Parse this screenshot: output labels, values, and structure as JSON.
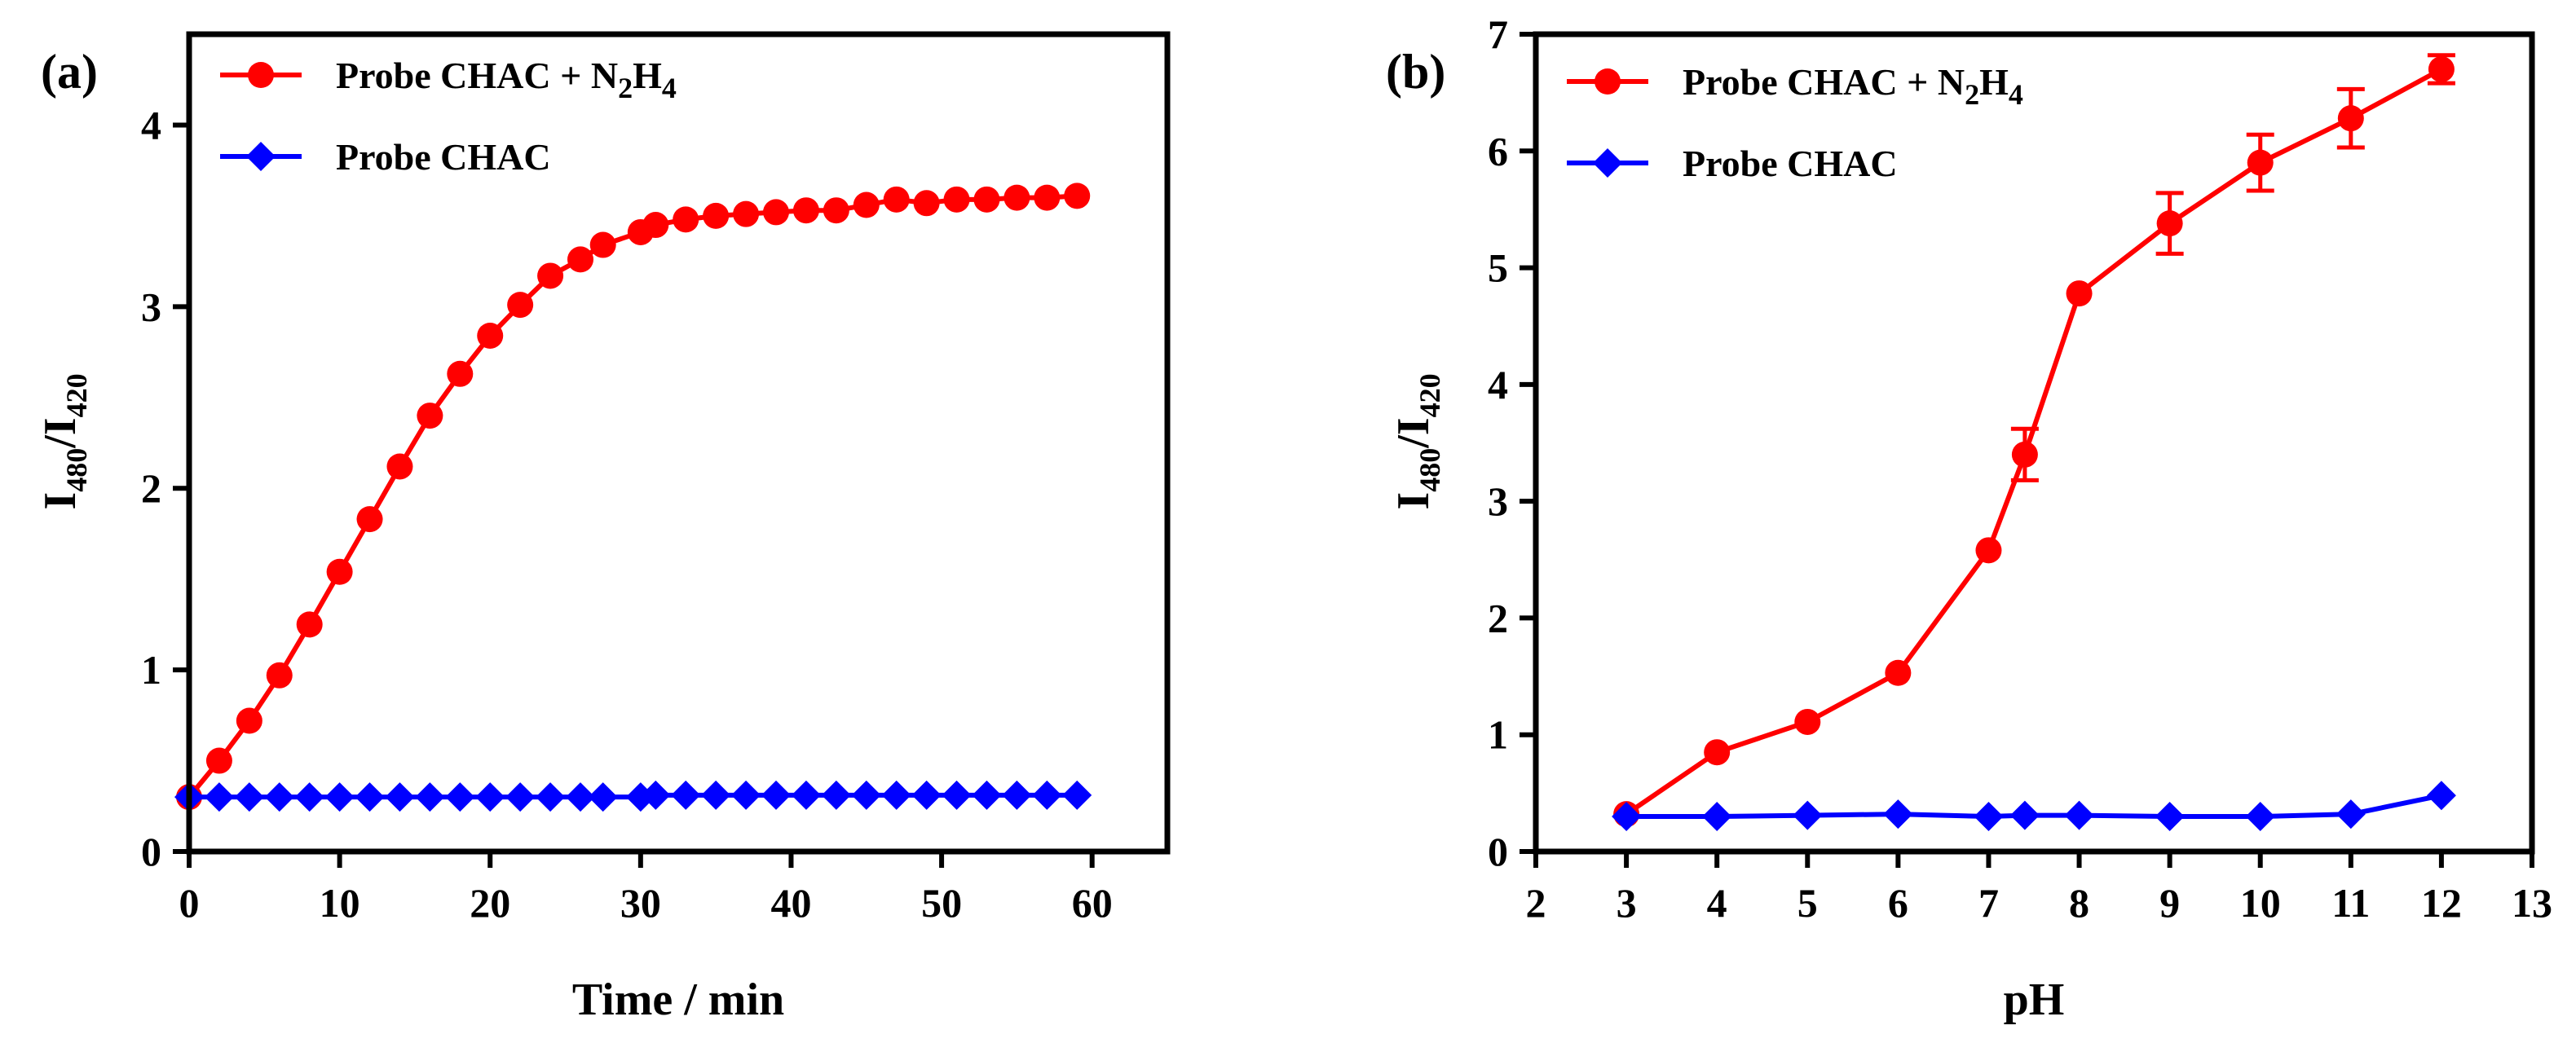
{
  "chart_data": [
    {
      "type": "line",
      "panel_label": "(a)",
      "xlabel": "Time / min",
      "ylabel_main": "I",
      "ylabel_sub1": "480",
      "ylabel_slash": "/I",
      "ylabel_sub2": "420",
      "xlim": [
        0,
        65
      ],
      "ylim": [
        0,
        4.5
      ],
      "xticks": [
        0,
        10,
        20,
        30,
        40,
        50,
        60
      ],
      "yticks": [
        0,
        1,
        2,
        3,
        4
      ],
      "legend_position": "top-left",
      "series": [
        {
          "name": "Probe CHAC + N2H4",
          "legend_parts": [
            "Probe CHAC + N",
            "2",
            "H",
            "4"
          ],
          "color": "#ff0000",
          "marker": "circle",
          "x": [
            0,
            2,
            4,
            6,
            8,
            10,
            12,
            14,
            16,
            18,
            20,
            22,
            24,
            26,
            27.5,
            30,
            31,
            33,
            35,
            37,
            39,
            41,
            43,
            45,
            47,
            49,
            51,
            53,
            55,
            57,
            59
          ],
          "y": [
            0.3,
            0.5,
            0.72,
            0.97,
            1.25,
            1.54,
            1.83,
            2.12,
            2.4,
            2.63,
            2.84,
            3.01,
            3.17,
            3.26,
            3.34,
            3.41,
            3.45,
            3.48,
            3.5,
            3.51,
            3.52,
            3.53,
            3.53,
            3.56,
            3.59,
            3.57,
            3.59,
            3.59,
            3.6,
            3.6,
            3.61
          ]
        },
        {
          "name": "Probe CHAC",
          "legend_parts": [
            "Probe CHAC"
          ],
          "color": "#0000ff",
          "marker": "diamond",
          "x": [
            0,
            2,
            4,
            6,
            8,
            10,
            12,
            14,
            16,
            18,
            20,
            22,
            24,
            26,
            27.5,
            30,
            31,
            33,
            35,
            37,
            39,
            41,
            43,
            45,
            47,
            49,
            51,
            53,
            55,
            57,
            59
          ],
          "y": [
            0.3,
            0.3,
            0.3,
            0.3,
            0.3,
            0.3,
            0.3,
            0.3,
            0.3,
            0.3,
            0.3,
            0.3,
            0.3,
            0.3,
            0.3,
            0.3,
            0.31,
            0.31,
            0.31,
            0.31,
            0.31,
            0.31,
            0.31,
            0.31,
            0.31,
            0.31,
            0.31,
            0.31,
            0.31,
            0.31,
            0.31
          ]
        }
      ]
    },
    {
      "type": "line",
      "panel_label": "(b)",
      "xlabel": "pH",
      "ylabel_main": "I",
      "ylabel_sub1": "480",
      "ylabel_slash": "/I",
      "ylabel_sub2": "420",
      "xlim": [
        2,
        13
      ],
      "ylim": [
        0,
        7
      ],
      "xticks": [
        2,
        3,
        4,
        5,
        6,
        7,
        8,
        9,
        10,
        11,
        12,
        13
      ],
      "yticks": [
        0,
        1,
        2,
        3,
        4,
        5,
        6,
        7
      ],
      "legend_position": "top-left",
      "series": [
        {
          "name": "Probe CHAC + N2H4",
          "legend_parts": [
            "Probe CHAC + N",
            "2",
            "H",
            "4"
          ],
          "color": "#ff0000",
          "marker": "circle",
          "x": [
            3,
            4,
            5,
            6,
            7,
            7.4,
            8,
            9,
            10,
            11,
            12
          ],
          "y": [
            0.32,
            0.85,
            1.11,
            1.53,
            2.58,
            3.4,
            4.78,
            5.38,
            5.9,
            6.28,
            6.7
          ],
          "error": [
            0,
            0,
            0,
            0,
            0,
            0.22,
            0,
            0.26,
            0.24,
            0.25,
            0.12
          ]
        },
        {
          "name": "Probe CHAC",
          "legend_parts": [
            "Probe CHAC"
          ],
          "color": "#0000ff",
          "marker": "diamond",
          "x": [
            3,
            4,
            5,
            6,
            7,
            7.4,
            8,
            9,
            10,
            11,
            12
          ],
          "y": [
            0.3,
            0.3,
            0.31,
            0.32,
            0.3,
            0.31,
            0.31,
            0.3,
            0.3,
            0.32,
            0.48
          ]
        }
      ]
    }
  ]
}
